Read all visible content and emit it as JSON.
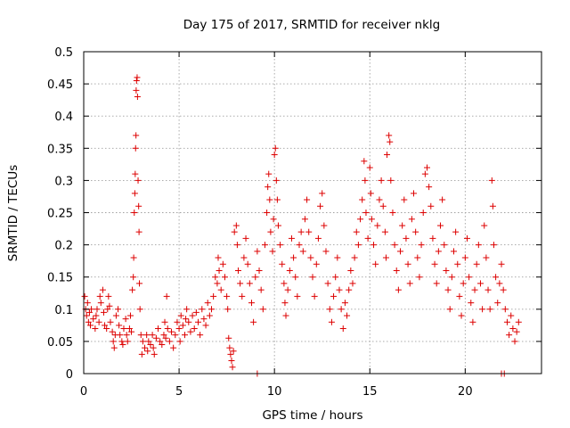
{
  "chart_data": {
    "type": "scatter",
    "title": "Day 175 of 2017, SRMTID for receiver nklg",
    "xlabel": "GPS time / hours",
    "ylabel": "SRMTID / TECUs",
    "xlim": [
      0,
      24
    ],
    "ylim": [
      0,
      0.5
    ],
    "grid": true,
    "x_ticks": [
      0,
      5,
      10,
      15,
      20
    ],
    "y_ticks": [
      0,
      0.05,
      0.1,
      0.15,
      0.2,
      0.25,
      0.3,
      0.35,
      0.4,
      0.45,
      0.5
    ],
    "x_tick_labels": [
      "0",
      "5",
      "10",
      "15",
      "20"
    ],
    "y_tick_labels": [
      "0",
      "0.05",
      "0.1",
      "0.15",
      "0.2",
      "0.25",
      "0.3",
      "0.35",
      "0.4",
      "0.45",
      "0.5"
    ],
    "series": [
      {
        "name": "SRMTID",
        "marker": "plus",
        "color": "#dd0000",
        "points": [
          [
            0.05,
            0.12
          ],
          [
            0.1,
            0.1
          ],
          [
            0.15,
            0.09
          ],
          [
            0.2,
            0.11
          ],
          [
            0.25,
            0.08
          ],
          [
            0.3,
            0.095
          ],
          [
            0.35,
            0.075
          ],
          [
            0.4,
            0.1
          ],
          [
            0.5,
            0.085
          ],
          [
            0.6,
            0.07
          ],
          [
            0.65,
            0.09
          ],
          [
            0.7,
            0.1
          ],
          [
            0.8,
            0.08
          ],
          [
            0.85,
            0.12
          ],
          [
            0.9,
            0.11
          ],
          [
            1.0,
            0.13
          ],
          [
            1.05,
            0.095
          ],
          [
            1.1,
            0.075
          ],
          [
            1.2,
            0.07
          ],
          [
            1.25,
            0.1
          ],
          [
            1.3,
            0.12
          ],
          [
            1.35,
            0.105
          ],
          [
            1.4,
            0.08
          ],
          [
            1.5,
            0.065
          ],
          [
            1.55,
            0.05
          ],
          [
            1.6,
            0.04
          ],
          [
            1.65,
            0.06
          ],
          [
            1.7,
            0.09
          ],
          [
            1.8,
            0.1
          ],
          [
            1.85,
            0.075
          ],
          [
            1.9,
            0.06
          ],
          [
            2.0,
            0.05
          ],
          [
            2.05,
            0.045
          ],
          [
            2.1,
            0.07
          ],
          [
            2.2,
            0.085
          ],
          [
            2.25,
            0.06
          ],
          [
            2.3,
            0.05
          ],
          [
            2.4,
            0.07
          ],
          [
            2.45,
            0.09
          ],
          [
            2.5,
            0.065
          ],
          [
            2.55,
            0.13
          ],
          [
            2.6,
            0.15
          ],
          [
            2.62,
            0.18
          ],
          [
            2.65,
            0.25
          ],
          [
            2.68,
            0.28
          ],
          [
            2.7,
            0.31
          ],
          [
            2.72,
            0.35
          ],
          [
            2.74,
            0.37
          ],
          [
            2.75,
            0.44
          ],
          [
            2.77,
            0.455
          ],
          [
            2.8,
            0.46
          ],
          [
            2.82,
            0.43
          ],
          [
            2.85,
            0.3
          ],
          [
            2.88,
            0.26
          ],
          [
            2.9,
            0.22
          ],
          [
            2.92,
            0.14
          ],
          [
            2.95,
            0.1
          ],
          [
            3.0,
            0.06
          ],
          [
            3.05,
            0.03
          ],
          [
            3.1,
            0.05
          ],
          [
            3.2,
            0.04
          ],
          [
            3.3,
            0.06
          ],
          [
            3.35,
            0.035
          ],
          [
            3.4,
            0.05
          ],
          [
            3.5,
            0.045
          ],
          [
            3.6,
            0.06
          ],
          [
            3.65,
            0.04
          ],
          [
            3.7,
            0.03
          ],
          [
            3.8,
            0.055
          ],
          [
            3.9,
            0.07
          ],
          [
            4.0,
            0.05
          ],
          [
            4.1,
            0.045
          ],
          [
            4.2,
            0.06
          ],
          [
            4.25,
            0.08
          ],
          [
            4.3,
            0.055
          ],
          [
            4.35,
            0.12
          ],
          [
            4.4,
            0.07
          ],
          [
            4.5,
            0.05
          ],
          [
            4.6,
            0.065
          ],
          [
            4.7,
            0.04
          ],
          [
            4.8,
            0.06
          ],
          [
            4.9,
            0.08
          ],
          [
            5.0,
            0.07
          ],
          [
            5.05,
            0.05
          ],
          [
            5.1,
            0.09
          ],
          [
            5.2,
            0.075
          ],
          [
            5.3,
            0.06
          ],
          [
            5.35,
            0.085
          ],
          [
            5.4,
            0.1
          ],
          [
            5.5,
            0.08
          ],
          [
            5.6,
            0.065
          ],
          [
            5.7,
            0.09
          ],
          [
            5.8,
            0.07
          ],
          [
            5.9,
            0.095
          ],
          [
            6.0,
            0.08
          ],
          [
            6.1,
            0.06
          ],
          [
            6.2,
            0.1
          ],
          [
            6.3,
            0.085
          ],
          [
            6.4,
            0.075
          ],
          [
            6.5,
            0.11
          ],
          [
            6.6,
            0.09
          ],
          [
            6.7,
            0.1
          ],
          [
            6.8,
            0.12
          ],
          [
            6.9,
            0.15
          ],
          [
            7.0,
            0.14
          ],
          [
            7.05,
            0.18
          ],
          [
            7.1,
            0.16
          ],
          [
            7.2,
            0.13
          ],
          [
            7.3,
            0.17
          ],
          [
            7.4,
            0.15
          ],
          [
            7.5,
            0.12
          ],
          [
            7.55,
            0.1
          ],
          [
            7.6,
            0.055
          ],
          [
            7.65,
            0.04
          ],
          [
            7.7,
            0.03
          ],
          [
            7.75,
            0.02
          ],
          [
            7.8,
            0.01
          ],
          [
            7.85,
            0.035
          ],
          [
            7.9,
            0.22
          ],
          [
            8.0,
            0.23
          ],
          [
            8.05,
            0.2
          ],
          [
            8.1,
            0.16
          ],
          [
            8.2,
            0.14
          ],
          [
            8.3,
            0.12
          ],
          [
            8.4,
            0.18
          ],
          [
            8.5,
            0.21
          ],
          [
            8.6,
            0.17
          ],
          [
            8.7,
            0.14
          ],
          [
            8.8,
            0.11
          ],
          [
            8.9,
            0.08
          ],
          [
            9.0,
            0.15
          ],
          [
            9.1,
            0.19
          ],
          [
            9.2,
            0.16
          ],
          [
            9.3,
            0.13
          ],
          [
            9.4,
            0.1
          ],
          [
            9.5,
            0.2
          ],
          [
            9.6,
            0.25
          ],
          [
            9.65,
            0.29
          ],
          [
            9.7,
            0.31
          ],
          [
            9.75,
            0.27
          ],
          [
            9.8,
            0.22
          ],
          [
            9.9,
            0.19
          ],
          [
            9.95,
            0.24
          ],
          [
            10.0,
            0.34
          ],
          [
            10.05,
            0.35
          ],
          [
            10.1,
            0.3
          ],
          [
            10.15,
            0.27
          ],
          [
            10.2,
            0.23
          ],
          [
            10.3,
            0.2
          ],
          [
            10.4,
            0.17
          ],
          [
            10.5,
            0.14
          ],
          [
            10.55,
            0.11
          ],
          [
            10.6,
            0.09
          ],
          [
            10.7,
            0.13
          ],
          [
            10.8,
            0.16
          ],
          [
            10.9,
            0.21
          ],
          [
            11.0,
            0.18
          ],
          [
            11.1,
            0.15
          ],
          [
            11.2,
            0.12
          ],
          [
            11.3,
            0.2
          ],
          [
            11.4,
            0.22
          ],
          [
            11.5,
            0.19
          ],
          [
            11.6,
            0.24
          ],
          [
            11.7,
            0.27
          ],
          [
            11.8,
            0.22
          ],
          [
            11.9,
            0.18
          ],
          [
            12.0,
            0.15
          ],
          [
            12.1,
            0.12
          ],
          [
            12.2,
            0.17
          ],
          [
            12.3,
            0.21
          ],
          [
            12.4,
            0.26
          ],
          [
            12.5,
            0.28
          ],
          [
            12.6,
            0.23
          ],
          [
            12.7,
            0.19
          ],
          [
            12.8,
            0.14
          ],
          [
            12.9,
            0.1
          ],
          [
            13.0,
            0.08
          ],
          [
            13.1,
            0.12
          ],
          [
            13.2,
            0.15
          ],
          [
            13.3,
            0.18
          ],
          [
            13.4,
            0.13
          ],
          [
            13.5,
            0.1
          ],
          [
            13.6,
            0.07
          ],
          [
            13.7,
            0.11
          ],
          [
            13.8,
            0.09
          ],
          [
            13.9,
            0.13
          ],
          [
            14.0,
            0.16
          ],
          [
            14.1,
            0.14
          ],
          [
            14.2,
            0.18
          ],
          [
            14.3,
            0.22
          ],
          [
            14.4,
            0.2
          ],
          [
            14.5,
            0.24
          ],
          [
            14.6,
            0.27
          ],
          [
            14.7,
            0.33
          ],
          [
            14.75,
            0.3
          ],
          [
            14.8,
            0.25
          ],
          [
            14.9,
            0.21
          ],
          [
            15.0,
            0.32
          ],
          [
            15.05,
            0.28
          ],
          [
            15.1,
            0.24
          ],
          [
            15.2,
            0.2
          ],
          [
            15.3,
            0.17
          ],
          [
            15.4,
            0.23
          ],
          [
            15.5,
            0.27
          ],
          [
            15.6,
            0.3
          ],
          [
            15.7,
            0.26
          ],
          [
            15.8,
            0.22
          ],
          [
            15.85,
            0.18
          ],
          [
            15.9,
            0.34
          ],
          [
            16.0,
            0.37
          ],
          [
            16.05,
            0.36
          ],
          [
            16.1,
            0.3
          ],
          [
            16.2,
            0.25
          ],
          [
            16.3,
            0.2
          ],
          [
            16.4,
            0.16
          ],
          [
            16.5,
            0.13
          ],
          [
            16.6,
            0.19
          ],
          [
            16.7,
            0.23
          ],
          [
            16.8,
            0.27
          ],
          [
            16.9,
            0.21
          ],
          [
            17.0,
            0.17
          ],
          [
            17.1,
            0.14
          ],
          [
            17.2,
            0.24
          ],
          [
            17.3,
            0.28
          ],
          [
            17.4,
            0.22
          ],
          [
            17.5,
            0.18
          ],
          [
            17.6,
            0.15
          ],
          [
            17.7,
            0.2
          ],
          [
            17.8,
            0.25
          ],
          [
            17.9,
            0.31
          ],
          [
            18.0,
            0.32
          ],
          [
            18.1,
            0.29
          ],
          [
            18.2,
            0.26
          ],
          [
            18.3,
            0.21
          ],
          [
            18.4,
            0.17
          ],
          [
            18.5,
            0.14
          ],
          [
            18.6,
            0.19
          ],
          [
            18.7,
            0.23
          ],
          [
            18.8,
            0.27
          ],
          [
            18.9,
            0.2
          ],
          [
            19.0,
            0.16
          ],
          [
            19.1,
            0.13
          ],
          [
            19.2,
            0.1
          ],
          [
            19.3,
            0.15
          ],
          [
            19.4,
            0.19
          ],
          [
            19.5,
            0.22
          ],
          [
            19.6,
            0.17
          ],
          [
            19.7,
            0.12
          ],
          [
            19.8,
            0.09
          ],
          [
            19.9,
            0.14
          ],
          [
            20.0,
            0.18
          ],
          [
            20.1,
            0.21
          ],
          [
            20.2,
            0.15
          ],
          [
            20.3,
            0.11
          ],
          [
            20.4,
            0.08
          ],
          [
            20.5,
            0.13
          ],
          [
            20.6,
            0.17
          ],
          [
            20.7,
            0.2
          ],
          [
            20.8,
            0.14
          ],
          [
            20.9,
            0.1
          ],
          [
            21.0,
            0.23
          ],
          [
            21.1,
            0.18
          ],
          [
            21.2,
            0.13
          ],
          [
            21.3,
            0.1
          ],
          [
            21.4,
            0.3
          ],
          [
            21.45,
            0.26
          ],
          [
            21.5,
            0.2
          ],
          [
            21.6,
            0.15
          ],
          [
            21.7,
            0.11
          ],
          [
            21.8,
            0.14
          ],
          [
            21.9,
            0.17
          ],
          [
            22.0,
            0.13
          ],
          [
            22.1,
            0.1
          ],
          [
            22.2,
            0.08
          ],
          [
            22.3,
            0.06
          ],
          [
            22.4,
            0.09
          ],
          [
            22.5,
            0.07
          ],
          [
            22.6,
            0.05
          ],
          [
            22.7,
            0.065
          ],
          [
            22.8,
            0.08
          ],
          [
            9.1,
            0.0
          ],
          [
            21.9,
            0.0
          ],
          [
            22.05,
            0.0
          ]
        ]
      }
    ]
  }
}
